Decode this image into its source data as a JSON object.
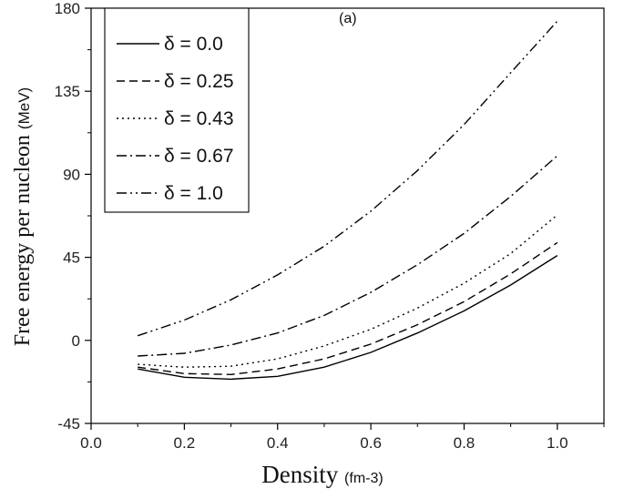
{
  "chart_data": {
    "type": "line",
    "panel_label": "(a)",
    "xlabel": "Density",
    "xlabel_unit": "(fm-3)",
    "ylabel": "Free energy per nucleon",
    "ylabel_unit": "(MeV)",
    "xlim": [
      0.0,
      1.1
    ],
    "ylim": [
      -45,
      180
    ],
    "xticks": [
      0.0,
      0.2,
      0.4,
      0.6,
      0.8,
      1.0
    ],
    "xtick_labels": [
      "0.0",
      "0.2",
      "0.4",
      "0.6",
      "0.8",
      "1.0"
    ],
    "yticks": [
      -45,
      0,
      45,
      90,
      135,
      180
    ],
    "ytick_labels": [
      "-45",
      "0",
      "45",
      "90",
      "135",
      "180"
    ],
    "grid": false,
    "legend_position": "top-left",
    "x": [
      0.1,
      0.2,
      0.3,
      0.4,
      0.5,
      0.6,
      0.7,
      0.8,
      0.9,
      1.0
    ],
    "series": [
      {
        "name": "δ = 0.0",
        "dash": "solid",
        "values": [
          -15.5,
          -20.0,
          -21.0,
          -19.5,
          -14.5,
          -6.5,
          4.0,
          16.0,
          30.0,
          46.0
        ]
      },
      {
        "name": "δ = 0.25",
        "dash": "dashed",
        "values": [
          -14.5,
          -18.0,
          -18.5,
          -15.5,
          -10.0,
          -2.0,
          8.5,
          21.0,
          36.0,
          53.0
        ]
      },
      {
        "name": "δ = 0.43",
        "dash": "dotted",
        "values": [
          -13.0,
          -14.5,
          -14.0,
          -10.0,
          -3.0,
          6.0,
          17.5,
          31.0,
          47.0,
          68.0
        ]
      },
      {
        "name": "δ = 0.67",
        "dash": "dashdot",
        "values": [
          -8.5,
          -7.0,
          -2.5,
          4.0,
          13.5,
          26.0,
          41.0,
          58.0,
          78.0,
          100.0
        ]
      },
      {
        "name": "δ = 1.0",
        "dash": "dashdotdot",
        "values": [
          2.5,
          11.0,
          22.0,
          35.5,
          51.0,
          70.0,
          92.0,
          117.0,
          145.0,
          173.0
        ]
      }
    ]
  }
}
